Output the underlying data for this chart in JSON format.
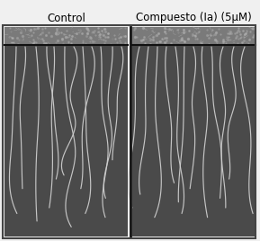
{
  "title_left": "Control",
  "title_right": "Compuesto (Ia) (5μM)",
  "bg_color": "#f0f0f0",
  "panel_bg": "#4a4a4a",
  "border_color": "#111111",
  "root_color": "#d0d0d0",
  "seed_band_color": "#7a7a7a",
  "seed_band_top": "#555555",
  "figure_width": 2.89,
  "figure_height": 2.68,
  "dpi": 100,
  "title_fontsize": 8.5,
  "divider_color": "#111111",
  "outer_border": "#444444"
}
